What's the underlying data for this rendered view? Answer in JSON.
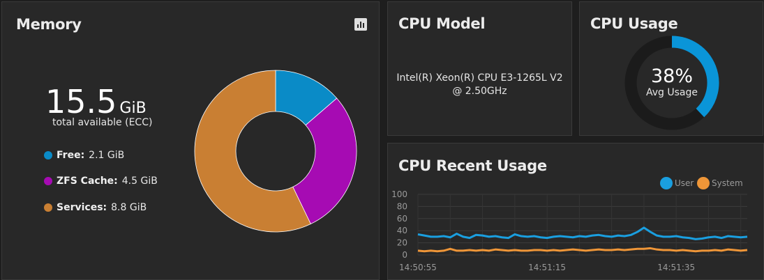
{
  "memory": {
    "title": "Memory",
    "icon": "bar-chart-icon",
    "total_value": "15.5",
    "total_unit": "GiB",
    "total_label": "total available (ECC)",
    "legend": [
      {
        "label": "Free:",
        "value": "2.1 GiB",
        "color": "#0a8bc7"
      },
      {
        "label": "ZFS Cache:",
        "value": "4.5 GiB",
        "color": "#a60bb3"
      },
      {
        "label": "Services:",
        "value": "8.8 GiB",
        "color": "#c97f33"
      }
    ],
    "donut": [
      2.1,
      4.5,
      8.8
    ]
  },
  "cpu_model": {
    "title": "CPU Model",
    "line1": "Intel(R) Xeon(R) CPU E3-1265L V2",
    "line2": "@ 2.50GHz"
  },
  "cpu_usage": {
    "title": "CPU Usage",
    "percent_text": "38%",
    "percent_value": 38,
    "label": "Avg Usage",
    "color": "#0a95d8"
  },
  "cpu_recent": {
    "title": "CPU Recent Usage",
    "chart_data": {
      "type": "line",
      "title": "CPU Recent Usage",
      "ylim": [
        0,
        100
      ],
      "yticks": [
        0,
        20,
        40,
        60,
        80,
        100
      ],
      "xtick_labels": [
        "14:50:55",
        "14:51:15",
        "14:51:35"
      ],
      "xtick_index": [
        0,
        20,
        40
      ],
      "grid": true,
      "legend_position": "top-right",
      "series": [
        {
          "name": "User",
          "color": "#1a9fe0",
          "values": [
            34,
            32,
            30,
            30,
            31,
            29,
            35,
            30,
            28,
            33,
            32,
            30,
            31,
            29,
            28,
            34,
            31,
            30,
            31,
            29,
            28,
            30,
            31,
            30,
            29,
            31,
            30,
            32,
            33,
            31,
            30,
            32,
            31,
            33,
            38,
            45,
            38,
            32,
            30,
            30,
            31,
            29,
            28,
            26,
            27,
            29,
            30,
            28,
            31,
            30,
            29,
            30
          ]
        },
        {
          "name": "System",
          "color": "#ef9638",
          "values": [
            7,
            6,
            7,
            6,
            7,
            10,
            7,
            7,
            8,
            7,
            8,
            7,
            9,
            8,
            7,
            8,
            7,
            7,
            8,
            8,
            7,
            8,
            7,
            8,
            9,
            8,
            7,
            8,
            9,
            8,
            8,
            9,
            8,
            9,
            10,
            10,
            11,
            9,
            8,
            8,
            7,
            8,
            7,
            6,
            7,
            7,
            8,
            7,
            9,
            8,
            7,
            8
          ]
        }
      ]
    }
  }
}
